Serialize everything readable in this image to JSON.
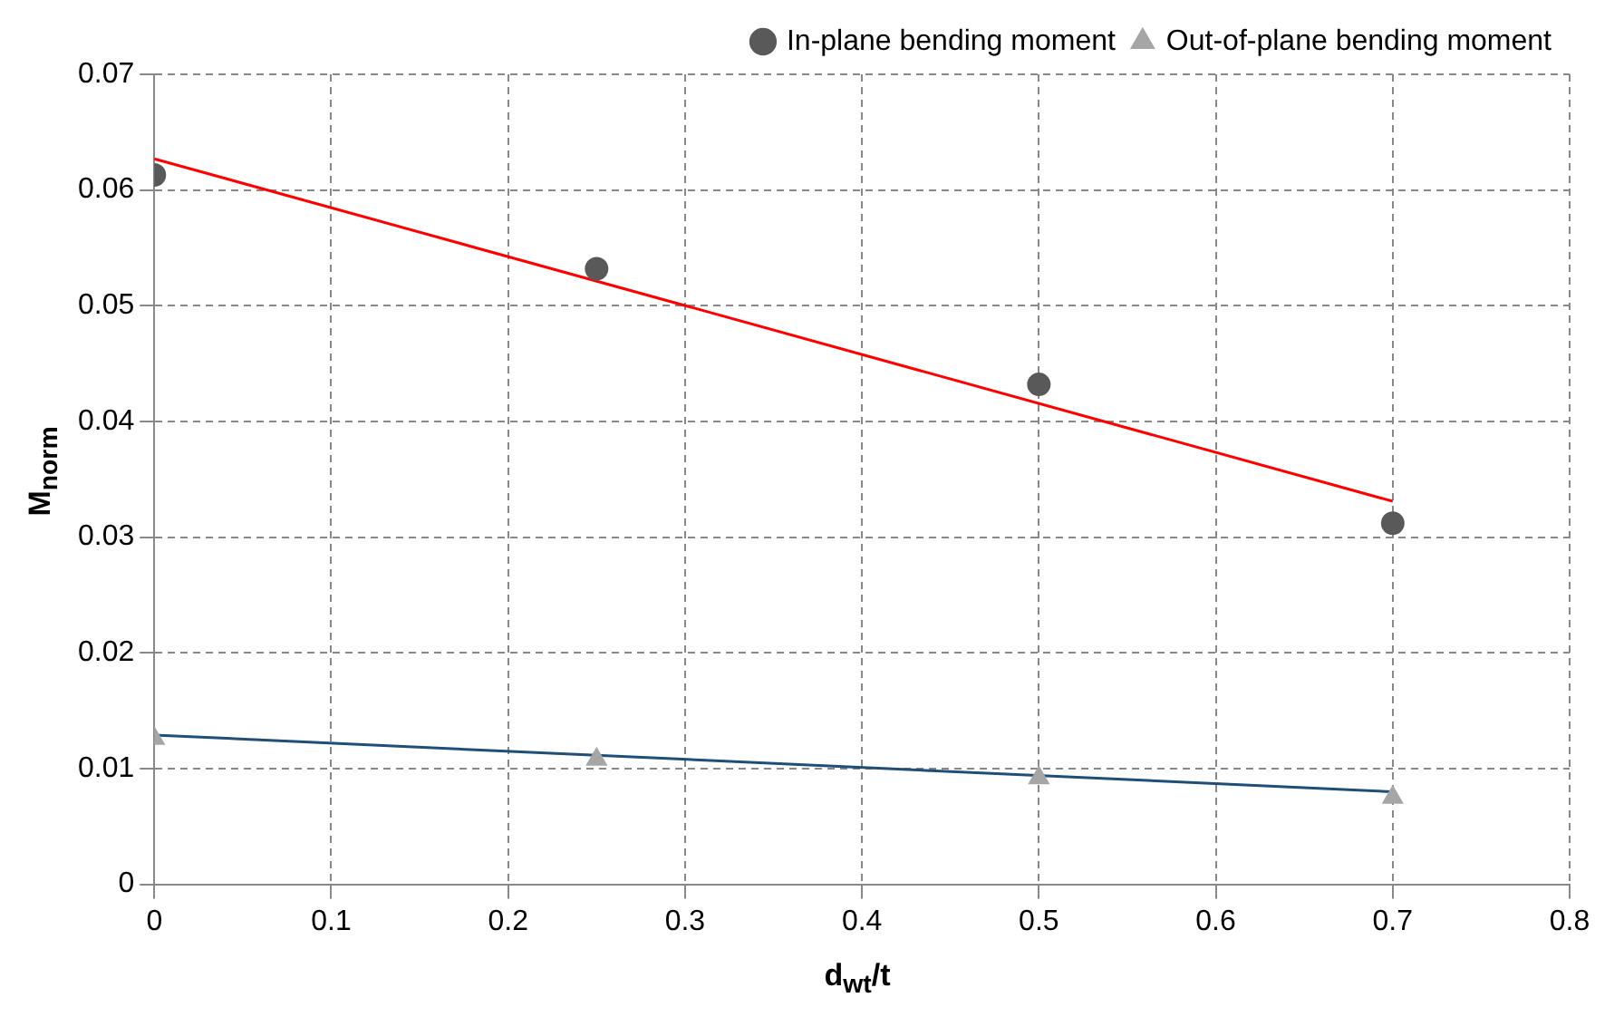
{
  "chart_data": {
    "type": "scatter",
    "xlabel": "d$_{wt}$/t",
    "ylabel": "M$_{norm}$",
    "xlim": [
      0,
      0.8
    ],
    "xticks": [
      0,
      0.1,
      0.2,
      0.3,
      0.4,
      0.5,
      0.6,
      0.7,
      0.8
    ],
    "ylim": [
      0,
      0.07
    ],
    "yticks": [
      0,
      0.01,
      0.02,
      0.03,
      0.04,
      0.05,
      0.06,
      0.07
    ],
    "grid": true,
    "legend": "top right",
    "series": [
      {
        "name": "In-plane bending moment",
        "color": "#595959",
        "marker": "circle",
        "x": [
          0,
          0.25,
          0.5,
          0.7
        ],
        "values": [
          0.0613,
          0.0532,
          0.0432,
          0.0312
        ]
      },
      {
        "name": "Out-of-plane bending moment",
        "color": "#a6a6a6",
        "marker": "triangle",
        "x": [
          0,
          0.25,
          0.5,
          0.7
        ],
        "values": [
          0.0126,
          0.0108,
          0.0092,
          0.0075
        ]
      },
      {
        "type": "line",
        "color": "#ff0000",
        "marker": "none",
        "x": [
          0,
          0.7
        ],
        "values": [
          0.0627,
          0.0331
        ]
      },
      {
        "type": "line",
        "color": "#1f4e79",
        "marker": "none",
        "x": [
          0,
          0.7
        ],
        "values": [
          0.0129,
          0.008
        ]
      }
    ]
  }
}
